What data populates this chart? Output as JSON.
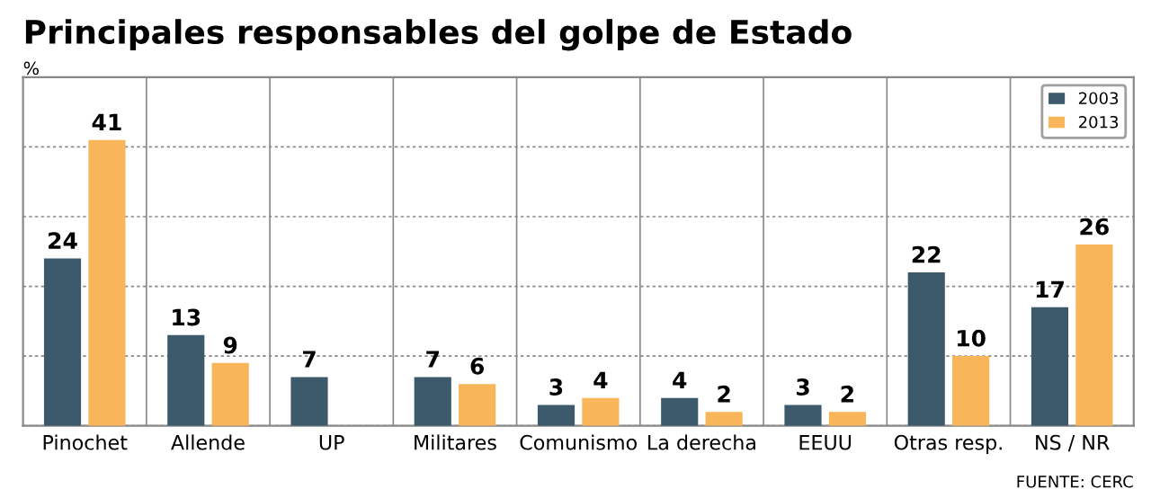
{
  "chart_data": {
    "type": "bar",
    "title": "Principales responsables del golpe de Estado",
    "ylabel": "%",
    "categories": [
      "Pinochet",
      "Allende",
      "UP",
      "Militares",
      "Comunismo",
      "La derecha",
      "EEUU",
      "Otras resp.",
      "NS / NR"
    ],
    "series": [
      {
        "name": "2003",
        "color": "#3d5a6c",
        "values": [
          24,
          13,
          7,
          7,
          3,
          4,
          3,
          22,
          17
        ]
      },
      {
        "name": "2013",
        "color": "#f9b55a",
        "values": [
          41,
          9,
          null,
          6,
          4,
          2,
          2,
          10,
          26
        ]
      }
    ],
    "ylim": [
      0,
      50
    ],
    "yticks": [
      {
        "value": 0,
        "label": null
      },
      {
        "value": 10,
        "label": null
      },
      {
        "value": 20,
        "label": null
      },
      {
        "value": 30,
        "label": null
      },
      {
        "value": 40,
        "label": null
      },
      {
        "value": 50,
        "label": null
      }
    ],
    "tick_labels": "x",
    "grid": "y",
    "legend": "top right",
    "data_labels": true,
    "annotations": [
      "FUENTE: CERC"
    ]
  }
}
